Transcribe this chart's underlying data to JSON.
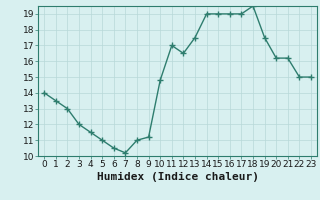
{
  "x": [
    0,
    1,
    2,
    3,
    4,
    5,
    6,
    7,
    8,
    9,
    10,
    11,
    12,
    13,
    14,
    15,
    16,
    17,
    18,
    19,
    20,
    21,
    22,
    23
  ],
  "y": [
    14,
    13.5,
    13,
    12,
    11.5,
    11,
    10.5,
    10.2,
    11,
    11.2,
    14.8,
    17,
    16.5,
    17.5,
    19,
    19,
    19,
    19,
    19.5,
    17.5,
    16.2,
    16.2,
    15,
    15
  ],
  "line_color": "#2e7d6e",
  "marker": "+",
  "marker_size": 4,
  "marker_linewidth": 1.0,
  "background_color": "#d8f0f0",
  "grid_color": "#b8d8d8",
  "xlabel": "Humidex (Indice chaleur)",
  "xlim": [
    -0.5,
    23.5
  ],
  "ylim": [
    10,
    19.5
  ],
  "yticks": [
    10,
    11,
    12,
    13,
    14,
    15,
    16,
    17,
    18,
    19
  ],
  "xticks": [
    0,
    1,
    2,
    3,
    4,
    5,
    6,
    7,
    8,
    9,
    10,
    11,
    12,
    13,
    14,
    15,
    16,
    17,
    18,
    19,
    20,
    21,
    22,
    23
  ],
  "tick_label_fontsize": 6.5,
  "xlabel_fontsize": 8,
  "linewidth": 1.0
}
